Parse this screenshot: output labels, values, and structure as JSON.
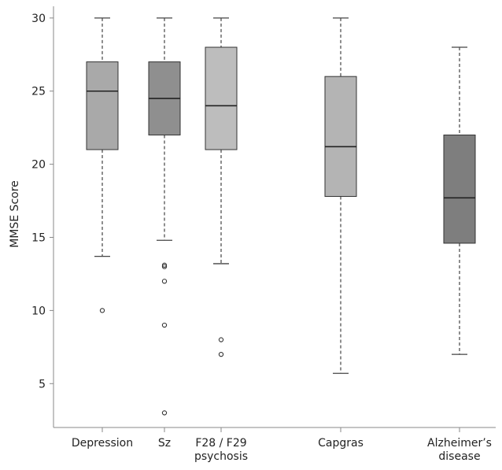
{
  "chart_data": {
    "type": "boxplot",
    "ylabel": "MMSE Score",
    "xlabel": "",
    "ylim": [
      2,
      30.8
    ],
    "yticks": [
      5,
      10,
      15,
      20,
      25,
      30
    ],
    "grid": false,
    "categories": [
      {
        "label": [
          "Depression"
        ],
        "whisker_low": 13.7,
        "q1": 21,
        "median": 25,
        "q3": 27,
        "whisker_high": 30,
        "outliers": [
          10
        ],
        "color": "#a9a9a9"
      },
      {
        "label": [
          "Sz"
        ],
        "whisker_low": 14.8,
        "q1": 22,
        "median": 24.5,
        "q3": 27,
        "whisker_high": 30,
        "outliers": [
          13.1,
          13,
          12,
          9,
          3
        ],
        "color": "#8f8f8f"
      },
      {
        "label": [
          "F28 / F29",
          "psychosis"
        ],
        "whisker_low": 13.2,
        "q1": 21,
        "median": 24,
        "q3": 28,
        "whisker_high": 30,
        "outliers": [
          8,
          7
        ],
        "color": "#bdbdbd"
      },
      {
        "label": [
          "Capgras"
        ],
        "whisker_low": 5.7,
        "q1": 17.8,
        "median": 21.2,
        "q3": 26,
        "whisker_high": 30,
        "outliers": [],
        "color": "#b4b4b4"
      },
      {
        "label": [
          "Alzheimer’s",
          "disease"
        ],
        "whisker_low": 7,
        "q1": 14.6,
        "median": 17.7,
        "q3": 22,
        "whisker_high": 28,
        "outliers": [],
        "color": "#7e7e7e"
      }
    ]
  }
}
